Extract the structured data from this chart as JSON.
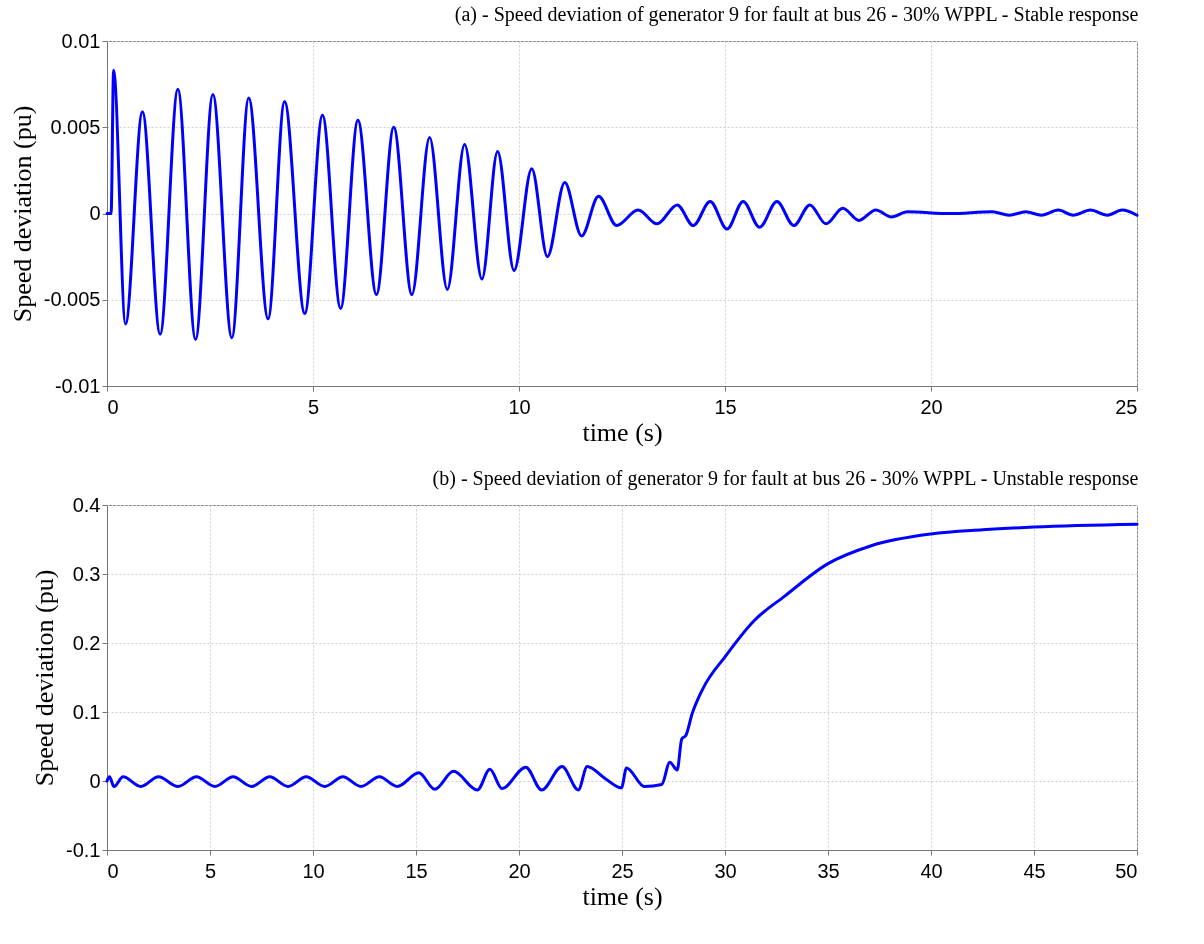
{
  "chart_data": [
    {
      "type": "line",
      "title": "(a) - Speed deviation of generator 9 for fault at bus 26 - 30% WPPL - Stable response",
      "xlabel": "time (s)",
      "ylabel": "Speed deviation (pu)",
      "x": [
        0,
        0.1,
        0.16,
        0.45,
        0.86,
        1.29,
        1.72,
        2.15,
        2.57,
        3.03,
        3.44,
        3.91,
        4.31,
        4.8,
        5.23,
        5.67,
        6.09,
        6.54,
        6.96,
        7.4,
        7.83,
        8.26,
        8.68,
        9.1,
        9.48,
        9.88,
        10.31,
        10.69,
        11.11,
        11.52,
        11.93,
        12.37,
        12.89,
        13.35,
        13.84,
        14.23,
        14.64,
        15.05,
        15.44,
        15.84,
        16.26,
        16.67,
        17.06,
        17.45,
        17.86,
        18.25,
        18.66,
        19.04,
        19.43,
        20.46,
        21.49,
        21.9,
        22.3,
        22.68,
        23.09,
        23.45,
        23.87,
        24.28,
        24.64,
        25
      ],
      "series": [
        {
          "color": "#0000ff",
          "values": [
            0,
            0,
            0.0083,
            -0.0064,
            0.0059,
            -0.007,
            0.0072,
            -0.0073,
            0.0069,
            -0.0072,
            0.0067,
            -0.0061,
            0.0065,
            -0.0058,
            0.0057,
            -0.0055,
            0.0054,
            -0.0047,
            0.005,
            -0.0047,
            0.0044,
            -0.0044,
            0.004,
            -0.0038,
            0.0036,
            -0.0033,
            0.0026,
            -0.0025,
            0.0018,
            -0.0013,
            0.001,
            -0.0007,
            0.0002,
            -0.0006,
            0.0005,
            -0.0007,
            0.0007,
            -0.0009,
            0.0007,
            -0.0008,
            0.0007,
            -0.0007,
            0.0005,
            -0.0006,
            0.0003,
            -0.0004,
            0.0002,
            -0.0002,
            0.0001,
            0,
            0.0001,
            -0.0001,
            0.0001,
            -0.0001,
            0.0002,
            -0.0001,
            0.0002,
            -0.0001,
            0.0002,
            -0.0001
          ]
        }
      ],
      "xlim": [
        0,
        25
      ],
      "ylim": [
        -0.01,
        0.01
      ],
      "xticks": [
        0,
        5,
        10,
        15,
        20,
        25
      ],
      "yticks": [
        -0.01,
        -0.005,
        0,
        0.005,
        0.01
      ],
      "grid": true,
      "marker": "none",
      "line_style": "solid"
    },
    {
      "type": "line",
      "title": "(b) - Speed deviation of generator 9 for fault at bus 26 - 30% WPPL - Unstable response",
      "xlabel": "time (s)",
      "ylabel": "Speed deviation (pu)",
      "x": [
        0,
        0.12,
        0.34,
        0.78,
        1.64,
        2.5,
        3.45,
        4.34,
        5.24,
        6.12,
        7.02,
        7.9,
        8.79,
        9.67,
        10.57,
        11.45,
        12.33,
        13.22,
        14.09,
        15.14,
        15.91,
        16.82,
        17.98,
        18.59,
        19.17,
        20.33,
        21.1,
        22.09,
        22.88,
        23.31,
        24.16,
        24.97,
        25.22,
        26.09,
        26.93,
        27.32,
        27.68,
        27.9,
        28.1,
        28.4,
        28.93,
        30,
        31.4,
        32.9,
        35,
        37.1,
        40,
        42.5,
        45,
        50
      ],
      "series": [
        {
          "color": "#0000ff",
          "values": [
            0,
            0.006,
            -0.008,
            0.006,
            -0.008,
            0.006,
            -0.008,
            0.006,
            -0.008,
            0.006,
            -0.008,
            0.006,
            -0.008,
            0.006,
            -0.008,
            0.006,
            -0.008,
            0.006,
            -0.008,
            0.012,
            -0.012,
            0.014,
            -0.013,
            0.017,
            -0.011,
            0.02,
            -0.013,
            0.021,
            -0.013,
            0.021,
            0.004,
            -0.01,
            0.019,
            -0.008,
            -0.005,
            0.027,
            0.016,
            0.061,
            0.066,
            0.097,
            0.134,
            0.18,
            0.232,
            0.268,
            0.315,
            0.341,
            0.358,
            0.364,
            0.368,
            0.372
          ]
        }
      ],
      "xlim": [
        0,
        50
      ],
      "ylim": [
        -0.1,
        0.4
      ],
      "xticks": [
        0,
        5,
        10,
        15,
        20,
        25,
        30,
        35,
        40,
        45,
        50
      ],
      "yticks": [
        -0.1,
        0,
        0.1,
        0.2,
        0.3,
        0.4
      ],
      "grid": true,
      "marker": "none",
      "line_style": "solid"
    }
  ]
}
